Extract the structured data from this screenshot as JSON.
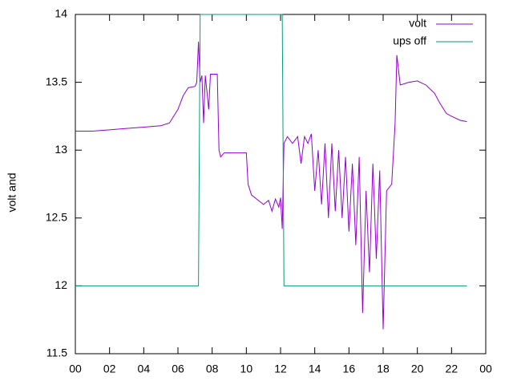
{
  "chart_data": {
    "type": "line",
    "ylabel": "volt and",
    "x": [
      0,
      1,
      2,
      3,
      4,
      5,
      5.5,
      6,
      6.3,
      6.6,
      7.0,
      7.1,
      7.2,
      7.3,
      7.4,
      7.5,
      7.6,
      7.8,
      7.9,
      8.3,
      8.4,
      8.5,
      8.7,
      9.0,
      9.5,
      10.0,
      10.1,
      10.3,
      10.6,
      11.0,
      11.3,
      11.5,
      11.7,
      11.9,
      12.0,
      12.1,
      12.2,
      12.4,
      12.7,
      13.0,
      13.2,
      13.4,
      13.6,
      13.8,
      14.0,
      14.2,
      14.4,
      14.6,
      14.8,
      15.0,
      15.2,
      15.4,
      15.6,
      15.8,
      16.0,
      16.2,
      16.4,
      16.6,
      16.8,
      17.0,
      17.2,
      17.4,
      17.6,
      17.8,
      18.0,
      18.2,
      18.5,
      18.7,
      18.8,
      19.0,
      19.5,
      20.0,
      20.5,
      21.0,
      21.3,
      21.7,
      22.0,
      22.5,
      22.9
    ],
    "series": [
      {
        "name": "volt",
        "color": "#9400d3",
        "values": [
          13.14,
          13.14,
          13.15,
          13.16,
          13.17,
          13.18,
          13.2,
          13.3,
          13.4,
          13.46,
          13.47,
          13.5,
          13.8,
          13.5,
          13.55,
          13.2,
          13.55,
          13.3,
          13.56,
          13.56,
          13.0,
          12.95,
          12.98,
          12.98,
          12.98,
          12.98,
          12.75,
          12.67,
          12.64,
          12.6,
          12.63,
          12.55,
          12.64,
          12.58,
          12.65,
          12.42,
          13.05,
          13.1,
          13.05,
          13.1,
          12.9,
          13.1,
          13.05,
          13.12,
          12.7,
          13.0,
          12.6,
          13.05,
          12.5,
          13.05,
          12.55,
          13.0,
          12.5,
          12.95,
          12.4,
          12.9,
          12.3,
          12.95,
          11.8,
          12.7,
          12.1,
          12.9,
          12.2,
          12.85,
          11.68,
          12.7,
          12.75,
          13.2,
          13.7,
          13.48,
          13.5,
          13.51,
          13.48,
          13.42,
          13.35,
          13.27,
          13.25,
          13.22,
          13.21
        ]
      },
      {
        "name": "ups off",
        "color": "#009e73",
        "values": [
          12,
          12,
          12,
          12,
          12,
          12,
          12,
          12,
          12,
          12,
          12,
          12,
          12,
          14,
          14,
          14,
          14,
          14,
          14,
          14,
          14,
          14,
          14,
          14,
          14,
          14,
          14,
          14,
          14,
          14,
          14,
          14,
          14,
          14,
          14,
          14,
          12,
          12,
          12,
          12,
          12,
          12,
          12,
          12,
          12,
          12,
          12,
          12,
          12,
          12,
          12,
          12,
          12,
          12,
          12,
          12,
          12,
          12,
          12,
          12,
          12,
          12,
          12,
          12,
          12,
          12,
          12,
          12,
          12,
          12,
          12,
          12,
          12,
          12,
          12,
          12,
          12,
          12,
          12
        ]
      }
    ],
    "xlim": [
      0,
      24
    ],
    "xticks": [
      {
        "value": 0,
        "label": "00"
      },
      {
        "value": 2,
        "label": "02"
      },
      {
        "value": 4,
        "label": "04"
      },
      {
        "value": 6,
        "label": "06"
      },
      {
        "value": 8,
        "label": "08"
      },
      10,
      12,
      14,
      16,
      18,
      20,
      22,
      {
        "value": 24,
        "label": "00"
      }
    ],
    "ylim": [
      11.5,
      14
    ],
    "yticks": [
      11.5,
      12,
      12.5,
      13,
      13.5,
      14
    ],
    "legend": "top-right"
  }
}
